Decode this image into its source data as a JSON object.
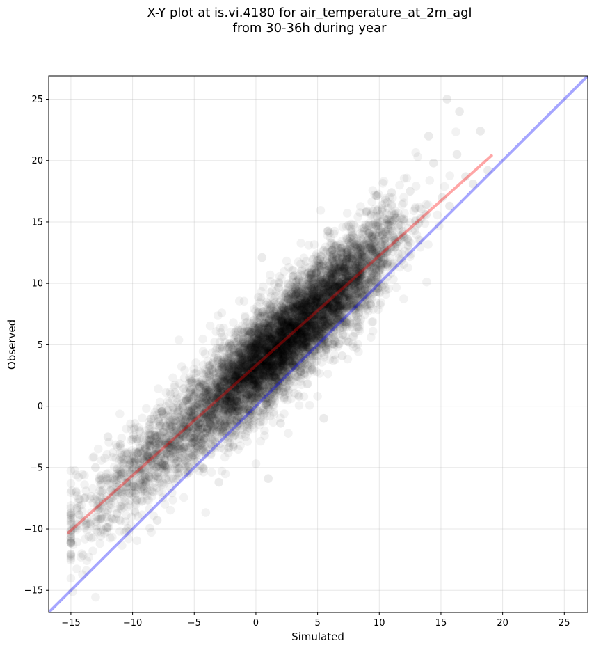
{
  "chart_data": {
    "type": "scatter",
    "title": [
      "X-Y plot at is.vi.4180 for air_temperature_at_2m_agl",
      "from 30-36h during year"
    ],
    "xlabel": "Simulated",
    "ylabel": "Observed",
    "xlim": [
      -16.8,
      26.9
    ],
    "ylim": [
      -16.8,
      26.9
    ],
    "xticks": [
      -15,
      -10,
      -5,
      0,
      5,
      10,
      15,
      20,
      25
    ],
    "yticks": [
      -15,
      -10,
      -5,
      0,
      5,
      10,
      15,
      20,
      25
    ],
    "xtick_labels": [
      "−15",
      "−10",
      "−5",
      "0",
      "5",
      "10",
      "15",
      "20",
      "25"
    ],
    "ytick_labels": [
      "−15",
      "−10",
      "−5",
      "0",
      "5",
      "10",
      "15",
      "20",
      "25"
    ],
    "grid": true,
    "lines": [
      {
        "kind": "identity",
        "x": [
          -16.8,
          26.9
        ],
        "y": [
          -16.8,
          26.9
        ],
        "color": "#0000ff"
      },
      {
        "kind": "regression",
        "x": [
          -15.2,
          19.1
        ],
        "y": [
          -10.3,
          20.4
        ],
        "color": "#ff0000"
      }
    ],
    "points": {
      "color": "#000000",
      "trend": {
        "slope": 0.9,
        "intercept": 3.38
      },
      "x_range": [
        -15,
        19
      ],
      "x": [
        -14.5,
        -13.9,
        -13.0,
        -12.4,
        -11.8,
        -11.0,
        -10.5,
        -10.0,
        -9.4,
        -8.8,
        -8.1,
        -7.5,
        -6.9,
        -6.2,
        -5.6,
        -5.0,
        -4.3,
        -3.7,
        -3.1,
        -2.5,
        -1.8,
        -1.2,
        -0.6,
        0.0,
        0.6,
        1.2,
        1.8,
        2.5,
        3.1,
        3.7,
        4.3,
        5.0,
        5.6,
        6.2,
        6.9,
        7.5,
        8.1,
        8.8,
        9.4,
        10.0,
        10.6,
        11.2,
        11.9,
        12.5,
        13.2,
        13.8,
        14.4,
        15.1,
        15.7,
        16.3,
        17.0,
        17.6,
        18.2,
        18.8,
        -12.0,
        -8.0,
        -3.0,
        0.5,
        1.0,
        2.0,
        3.5,
        5.5,
        7.0,
        9.0,
        11.0,
        14.0,
        15.5,
        16.5
      ],
      "y": [
        -8.3,
        -7.5,
        -5.0,
        -7.8,
        -6.9,
        -3.1,
        -6.6,
        -2.7,
        -5.4,
        -4.0,
        -3.6,
        -4.7,
        -1.7,
        -3.5,
        -1.9,
        -2.9,
        0.9,
        -1.5,
        1.1,
        0.4,
        0.2,
        2.3,
        1.0,
        3.0,
        2.5,
        5.9,
        4.2,
        4.7,
        7.1,
        6.2,
        5.4,
        9.3,
        8.5,
        8.3,
        11.4,
        10.3,
        9.4,
        13.2,
        10.8,
        11.1,
        15.2,
        13.5,
        14.0,
        17.5,
        14.9,
        15.6,
        19.8,
        17.0,
        16.3,
        20.5,
        18.7,
        18.1,
        22.4,
        19.2,
        -2.5,
        -9.3,
        -6.2,
        12.1,
        -5.9,
        -1.4,
        0.8,
        -1.0,
        4.1,
        15.9,
        17.4,
        22.0,
        25.0,
        24.0
      ],
      "density_cloud": "about 8,000 semi-transparent markers clustered along the trend"
    }
  }
}
